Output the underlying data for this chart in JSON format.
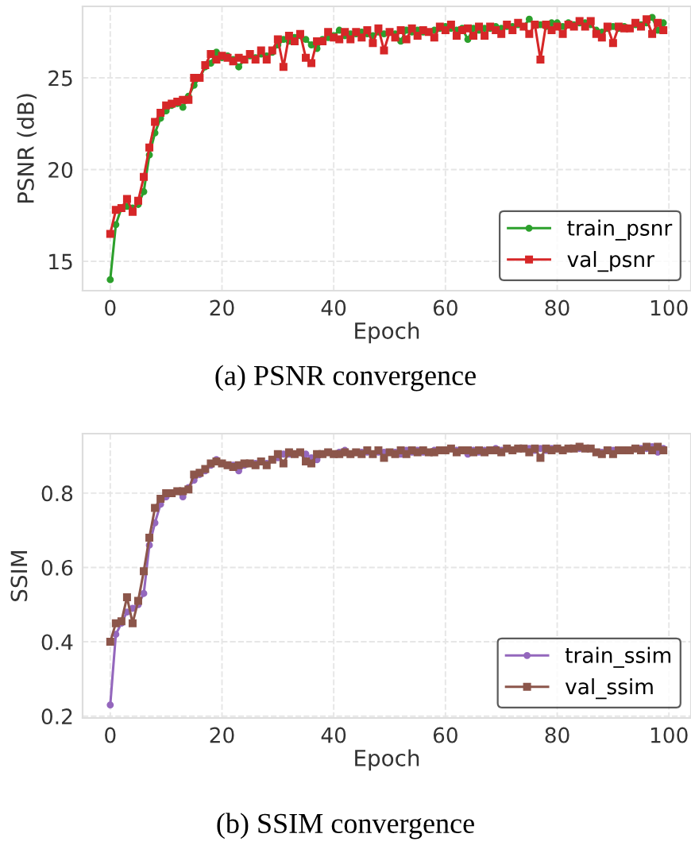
{
  "chart_data": [
    {
      "type": "line",
      "xlabel": "Epoch",
      "ylabel": "PSNR (dB)",
      "annotations": [
        "(a) PSNR convergence"
      ],
      "x": [
        0,
        1,
        2,
        3,
        4,
        5,
        6,
        7,
        8,
        9,
        10,
        11,
        12,
        13,
        14,
        15,
        16,
        17,
        18,
        19,
        20,
        21,
        22,
        23,
        24,
        25,
        26,
        27,
        28,
        29,
        30,
        31,
        32,
        33,
        34,
        35,
        36,
        37,
        38,
        39,
        40,
        41,
        42,
        43,
        44,
        45,
        46,
        47,
        48,
        49,
        50,
        51,
        52,
        53,
        54,
        55,
        56,
        57,
        58,
        59,
        60,
        61,
        62,
        63,
        64,
        65,
        66,
        67,
        68,
        69,
        70,
        71,
        72,
        73,
        74,
        75,
        76,
        77,
        78,
        79,
        80,
        81,
        82,
        83,
        84,
        85,
        86,
        87,
        88,
        89,
        90,
        91,
        92,
        93,
        94,
        95,
        96,
        97,
        98,
        99
      ],
      "series": [
        {
          "name": "train_psnr",
          "color": "#2ca02c",
          "marker": "circle",
          "values": [
            14.0,
            17.0,
            17.9,
            18.0,
            17.9,
            18.1,
            18.8,
            20.8,
            22.0,
            22.8,
            23.2,
            23.5,
            23.6,
            23.4,
            24.0,
            24.6,
            25.0,
            25.6,
            25.8,
            26.4,
            26.1,
            26.2,
            26.0,
            25.6,
            26.0,
            26.2,
            26.1,
            26.3,
            26.2,
            26.4,
            26.8,
            27.1,
            27.0,
            27.2,
            27.3,
            27.1,
            26.8,
            26.6,
            27.1,
            27.2,
            27.3,
            27.6,
            27.3,
            27.4,
            27.4,
            27.5,
            27.4,
            27.3,
            27.5,
            27.4,
            27.5,
            27.4,
            27.0,
            27.6,
            27.5,
            27.6,
            27.5,
            27.5,
            27.6,
            27.7,
            27.8,
            27.7,
            27.6,
            27.7,
            27.1,
            27.7,
            27.6,
            27.7,
            27.7,
            27.8,
            27.7,
            27.8,
            27.8,
            27.9,
            27.8,
            28.2,
            27.9,
            27.9,
            27.8,
            28.0,
            28.0,
            27.8,
            28.0,
            27.9,
            28.0,
            28.0,
            27.9,
            27.6,
            27.5,
            27.7,
            27.8,
            27.7,
            27.8,
            27.7,
            27.9,
            27.9,
            28.0,
            28.3,
            27.6,
            28.0
          ]
        },
        {
          "name": "val_psnr",
          "color": "#d62728",
          "marker": "square",
          "values": [
            16.5,
            17.8,
            17.9,
            18.4,
            17.7,
            18.3,
            19.6,
            21.2,
            22.6,
            23.1,
            23.5,
            23.6,
            23.7,
            23.8,
            23.8,
            25.0,
            25.0,
            25.7,
            26.3,
            26.0,
            26.2,
            26.1,
            25.9,
            26.1,
            26.0,
            26.3,
            26.0,
            26.5,
            26.0,
            26.5,
            27.1,
            25.6,
            27.3,
            27.0,
            27.4,
            26.1,
            25.8,
            27.0,
            27.0,
            27.5,
            27.2,
            27.1,
            27.5,
            27.1,
            27.5,
            27.2,
            27.6,
            26.9,
            27.7,
            26.5,
            27.5,
            27.2,
            27.6,
            27.1,
            27.7,
            27.3,
            27.6,
            27.5,
            27.2,
            27.8,
            27.6,
            27.9,
            27.3,
            27.6,
            27.7,
            27.3,
            27.8,
            27.3,
            27.8,
            27.6,
            27.4,
            27.9,
            27.6,
            28.0,
            27.8,
            27.4,
            27.9,
            26.0,
            27.9,
            27.6,
            27.8,
            27.4,
            27.9,
            27.8,
            28.1,
            27.8,
            28.1,
            27.4,
            27.2,
            27.8,
            26.9,
            27.8,
            27.7,
            27.7,
            28.0,
            27.8,
            28.2,
            27.4,
            28.0,
            27.6
          ]
        }
      ],
      "xlim": [
        -4.95,
        103.95
      ],
      "xticks": [
        0,
        20,
        40,
        60,
        80,
        100
      ],
      "ylim": [
        13.4,
        28.9
      ],
      "yticks": [
        15,
        20,
        25
      ],
      "grid": true,
      "legend": "bottom right",
      "line_style": "solid"
    },
    {
      "type": "line",
      "xlabel": "Epoch",
      "ylabel": "SSIM",
      "annotations": [
        "(b) SSIM convergence"
      ],
      "x": [
        0,
        1,
        2,
        3,
        4,
        5,
        6,
        7,
        8,
        9,
        10,
        11,
        12,
        13,
        14,
        15,
        16,
        17,
        18,
        19,
        20,
        21,
        22,
        23,
        24,
        25,
        26,
        27,
        28,
        29,
        30,
        31,
        32,
        33,
        34,
        35,
        36,
        37,
        38,
        39,
        40,
        41,
        42,
        43,
        44,
        45,
        46,
        47,
        48,
        49,
        50,
        51,
        52,
        53,
        54,
        55,
        56,
        57,
        58,
        59,
        60,
        61,
        62,
        63,
        64,
        65,
        66,
        67,
        68,
        69,
        70,
        71,
        72,
        73,
        74,
        75,
        76,
        77,
        78,
        79,
        80,
        81,
        82,
        83,
        84,
        85,
        86,
        87,
        88,
        89,
        90,
        91,
        92,
        93,
        94,
        95,
        96,
        97,
        98,
        99
      ],
      "series": [
        {
          "name": "train_ssim",
          "color": "#9467bd",
          "marker": "circle",
          "values": [
            0.23,
            0.42,
            0.45,
            0.48,
            0.49,
            0.5,
            0.53,
            0.66,
            0.72,
            0.77,
            0.79,
            0.8,
            0.805,
            0.79,
            0.815,
            0.835,
            0.85,
            0.86,
            0.875,
            0.89,
            0.88,
            0.875,
            0.875,
            0.86,
            0.875,
            0.88,
            0.88,
            0.885,
            0.88,
            0.89,
            0.895,
            0.905,
            0.905,
            0.905,
            0.91,
            0.905,
            0.895,
            0.89,
            0.905,
            0.91,
            0.905,
            0.91,
            0.915,
            0.905,
            0.91,
            0.91,
            0.91,
            0.905,
            0.91,
            0.91,
            0.91,
            0.91,
            0.905,
            0.915,
            0.91,
            0.915,
            0.91,
            0.91,
            0.915,
            0.915,
            0.915,
            0.92,
            0.915,
            0.915,
            0.905,
            0.915,
            0.91,
            0.915,
            0.915,
            0.92,
            0.915,
            0.92,
            0.915,
            0.92,
            0.92,
            0.92,
            0.915,
            0.92,
            0.915,
            0.92,
            0.92,
            0.915,
            0.92,
            0.92,
            0.92,
            0.92,
            0.92,
            0.91,
            0.91,
            0.915,
            0.915,
            0.915,
            null,
            0.915,
            0.92,
            0.92,
            0.92,
            0.925,
            0.91,
            0.92
          ]
        },
        {
          "name": "val_ssim",
          "color": "#8c564b",
          "marker": "square",
          "values": [
            0.4,
            0.45,
            0.455,
            0.52,
            0.45,
            0.51,
            0.59,
            0.68,
            0.76,
            0.785,
            0.8,
            0.8,
            0.805,
            0.805,
            0.81,
            0.85,
            0.855,
            0.865,
            0.88,
            0.885,
            0.88,
            0.875,
            0.87,
            0.875,
            0.88,
            0.88,
            0.875,
            0.885,
            0.875,
            0.89,
            0.905,
            0.88,
            0.91,
            0.905,
            0.91,
            0.885,
            0.88,
            0.905,
            0.905,
            0.91,
            0.905,
            0.905,
            0.91,
            0.905,
            0.91,
            0.905,
            0.915,
            0.905,
            0.915,
            0.895,
            0.91,
            0.905,
            0.915,
            0.905,
            0.915,
            0.91,
            0.915,
            0.91,
            0.91,
            0.915,
            0.915,
            0.92,
            0.91,
            0.915,
            0.915,
            0.91,
            0.915,
            0.91,
            0.915,
            0.915,
            0.91,
            0.92,
            0.915,
            0.92,
            0.92,
            0.91,
            0.92,
            0.895,
            0.92,
            0.915,
            0.92,
            0.915,
            0.92,
            0.92,
            0.925,
            0.92,
            0.92,
            0.91,
            0.905,
            0.915,
            0.905,
            0.915,
            0.915,
            0.915,
            0.92,
            0.915,
            0.925,
            0.915,
            0.925,
            0.915
          ]
        }
      ],
      "xlim": [
        -4.95,
        103.95
      ],
      "xticks": [
        0,
        20,
        40,
        60,
        80,
        100
      ],
      "ylim": [
        0.195,
        0.96
      ],
      "yticks": [
        0.2,
        0.4,
        0.6,
        0.8
      ],
      "grid": true,
      "legend": "bottom right",
      "line_style": "solid"
    }
  ]
}
